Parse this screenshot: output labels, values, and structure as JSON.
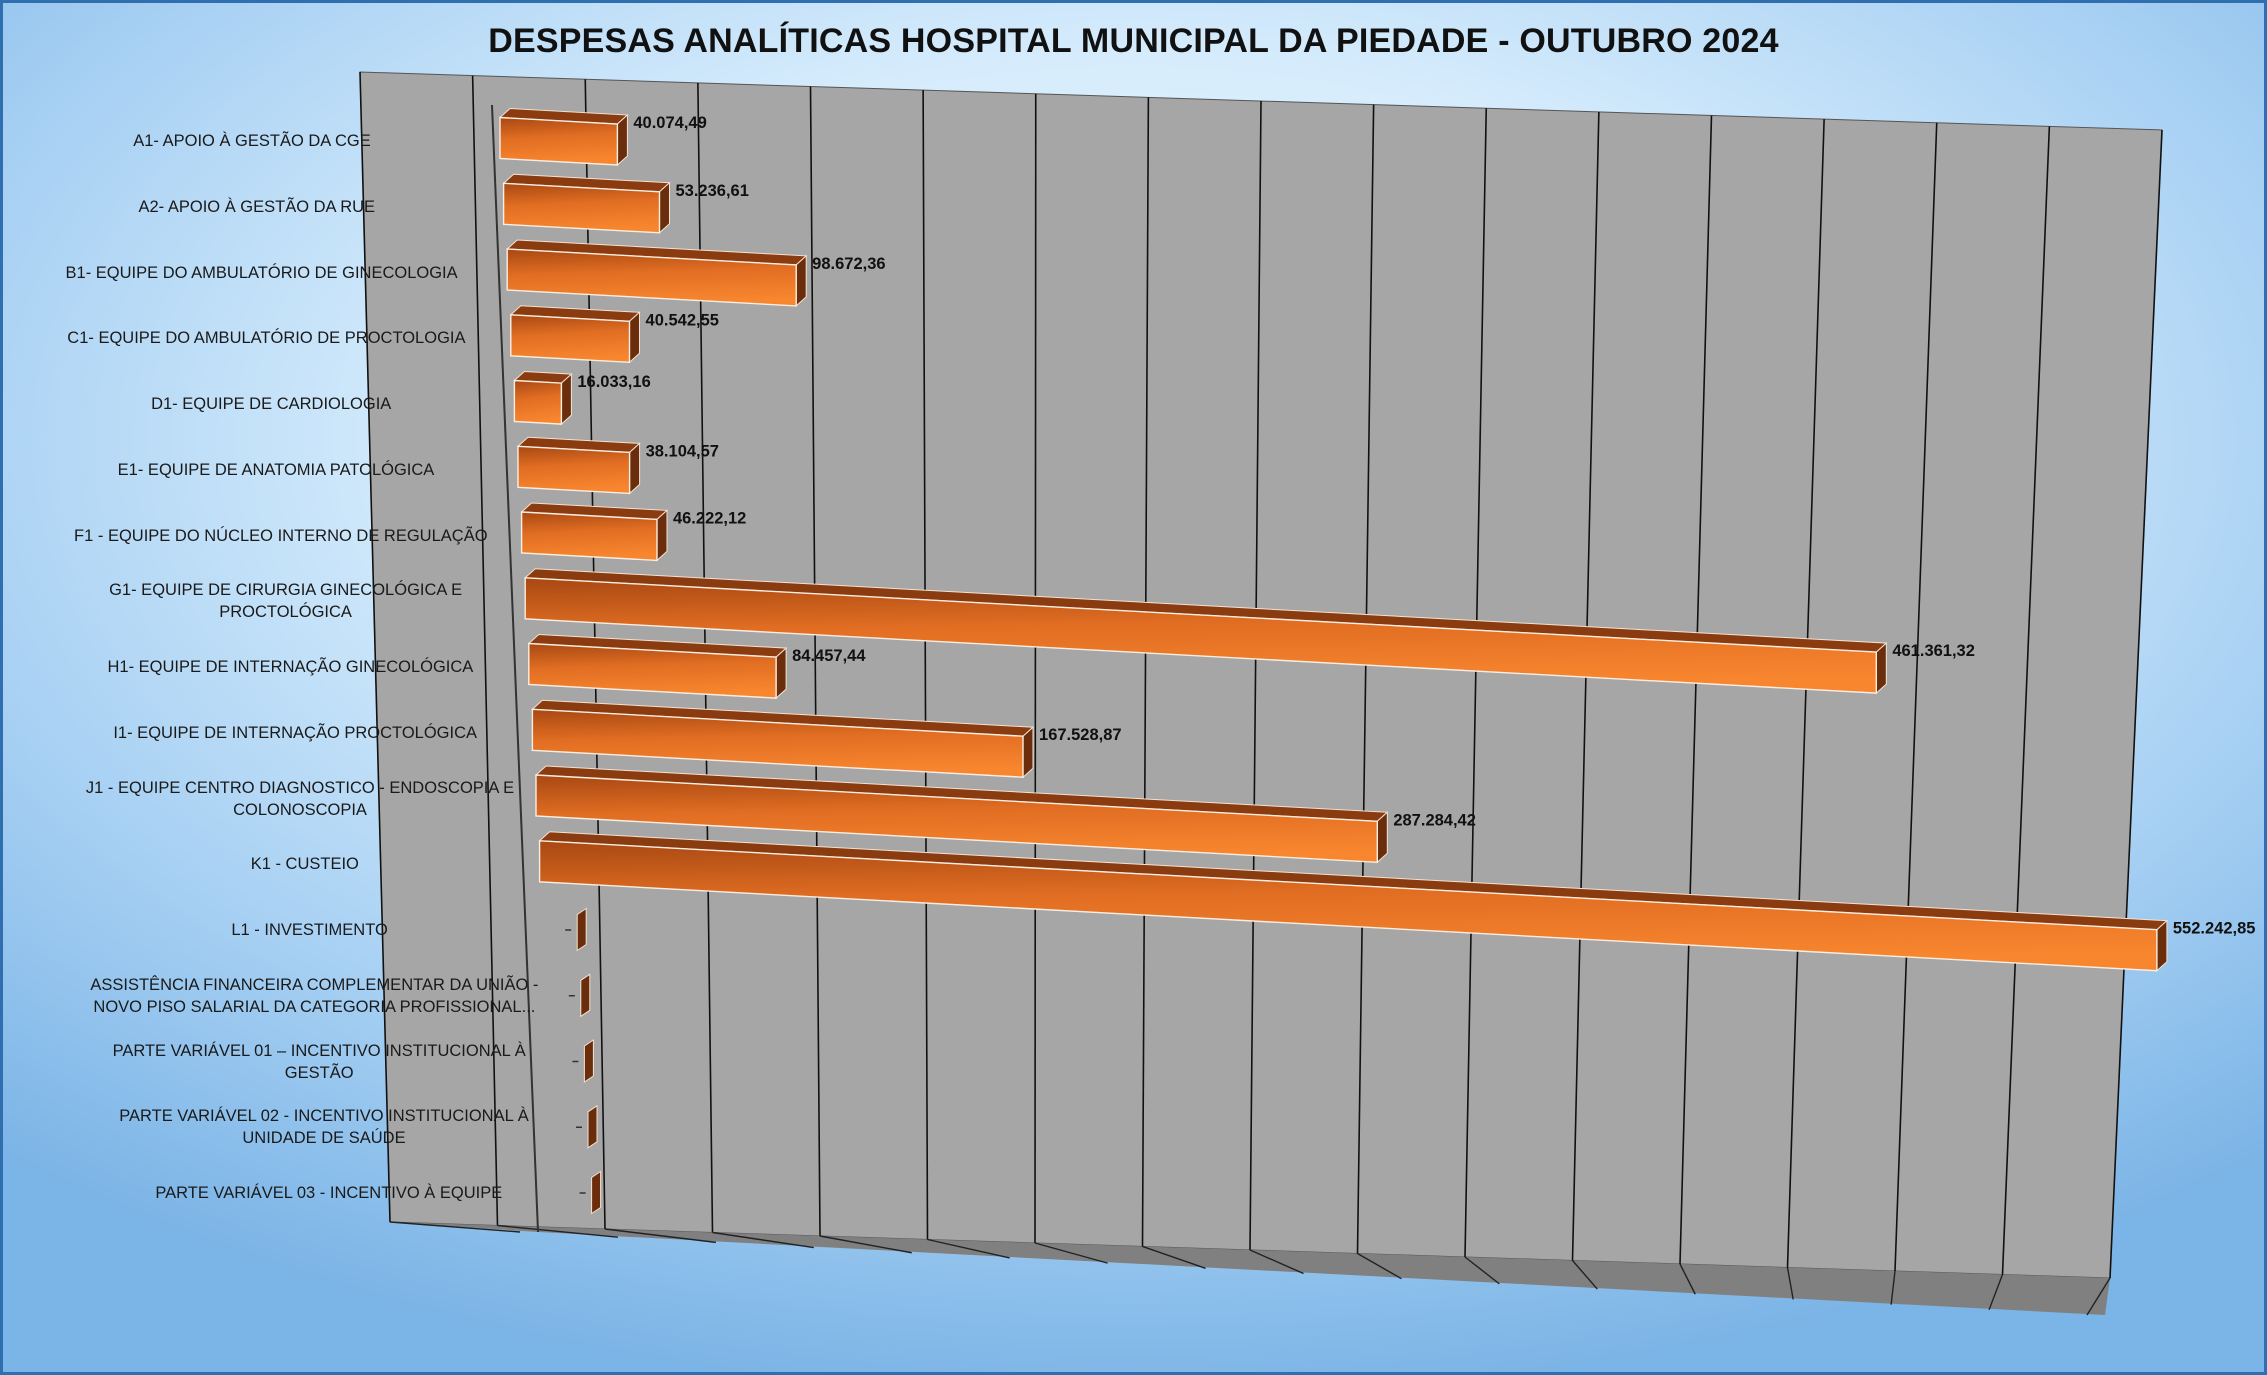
{
  "chart_data": {
    "type": "bar",
    "orientation": "horizontal",
    "title": "DESPESAS ANALÍTICAS HOSPITAL MUNICIPAL DA PIEDADE - OUTUBRO 2024",
    "xlabel": "",
    "ylabel": "",
    "style": "3d",
    "grid": true,
    "legend": "none",
    "xlim": [
      0,
      560000
    ],
    "categories": [
      "A1- APOIO À GESTÃO DA CGE",
      "A2- APOIO À GESTÃO DA RUE",
      "B1- EQUIPE DO AMBULATÓRIO DE GINECOLOGIA",
      "C1- EQUIPE DO AMBULATÓRIO DE PROCTOLOGIA",
      "D1- EQUIPE DE CARDIOLOGIA",
      "E1- EQUIPE DE ANATOMIA PATOLÓGICA",
      "F1 - EQUIPE DO NÚCLEO INTERNO DE REGULAÇÃO",
      "G1- EQUIPE DE CIRURGIA GINECOLÓGICA E PROCTOLÓGICA",
      "H1- EQUIPE DE INTERNAÇÃO GINECOLÓGICA",
      "I1- EQUIPE DE INTERNAÇÃO PROCTOLÓGICA",
      "J1 - EQUIPE CENTRO DIAGNOSTICO - ENDOSCOPIA E COLONOSCOPIA",
      "K1 - CUSTEIO",
      "L1 - INVESTIMENTO",
      "ASSISTÊNCIA FINANCEIRA COMPLEMENTAR DA UNIÃO - NOVO PISO SALARIAL DA CATEGORIA PROFISSIONAL...",
      "PARTE VARIÁVEL 01 – INCENTIVO INSTITUCIONAL À GESTÃO",
      "PARTE VARIÁVEL 02 - INCENTIVO INSTITUCIONAL À UNIDADE DE SAÚDE",
      "PARTE VARIÁVEL 03 - INCENTIVO À EQUIPE"
    ],
    "category_label_lines": [
      [
        "A1- APOIO À GESTÃO DA CGE"
      ],
      [
        "A2- APOIO À GESTÃO DA RUE"
      ],
      [
        "B1- EQUIPE DO AMBULATÓRIO DE GINECOLOGIA"
      ],
      [
        "C1- EQUIPE DO AMBULATÓRIO DE PROCTOLOGIA"
      ],
      [
        "D1- EQUIPE DE CARDIOLOGIA"
      ],
      [
        "E1- EQUIPE DE ANATOMIA PATOLÓGICA"
      ],
      [
        "F1 - EQUIPE DO NÚCLEO INTERNO DE REGULAÇÃO"
      ],
      [
        "G1- EQUIPE DE CIRURGIA GINECOLÓGICA E",
        "PROCTOLÓGICA"
      ],
      [
        "H1- EQUIPE DE INTERNAÇÃO GINECOLÓGICA"
      ],
      [
        "I1- EQUIPE DE INTERNAÇÃO PROCTOLÓGICA"
      ],
      [
        "J1 - EQUIPE CENTRO DIAGNOSTICO - ENDOSCOPIA E",
        "COLONOSCOPIA"
      ],
      [
        "K1 - CUSTEIO"
      ],
      [
        "L1 - INVESTIMENTO"
      ],
      [
        "ASSISTÊNCIA FINANCEIRA COMPLEMENTAR DA UNIÃO -",
        "NOVO PISO SALARIAL DA CATEGORIA PROFISSIONAL..."
      ],
      [
        "PARTE VARIÁVEL 01 – INCENTIVO INSTITUCIONAL À",
        "GESTÃO"
      ],
      [
        "PARTE VARIÁVEL 02 - INCENTIVO INSTITUCIONAL À",
        "UNIDADE DE SAÚDE"
      ],
      [
        "PARTE VARIÁVEL 03 - INCENTIVO À EQUIPE"
      ]
    ],
    "values": [
      40074.49,
      53236.61,
      98672.36,
      40542.55,
      16033.16,
      38104.57,
      46222.12,
      461361.32,
      84457.44,
      167528.87,
      287284.42,
      552242.85,
      0,
      0,
      0,
      0,
      0
    ],
    "value_labels": [
      "40.074,49",
      "53.236,61",
      "98.672,36",
      "40.542,55",
      "16.033,16",
      "38.104,57",
      "46.222,12",
      "461.361,32",
      "84.457,44",
      "167.528,87",
      "287.284,42",
      "552.242,85",
      "",
      "",
      "",
      "",
      ""
    ],
    "colors": {
      "bar_front_light": "#f6812e",
      "bar_front_dark": "#b04e16",
      "bar_top": "#8a3c10",
      "bar_side": "#6b2e0c",
      "wall": "#a6a6a6",
      "floor": "#808080",
      "grid": "#111111"
    }
  }
}
